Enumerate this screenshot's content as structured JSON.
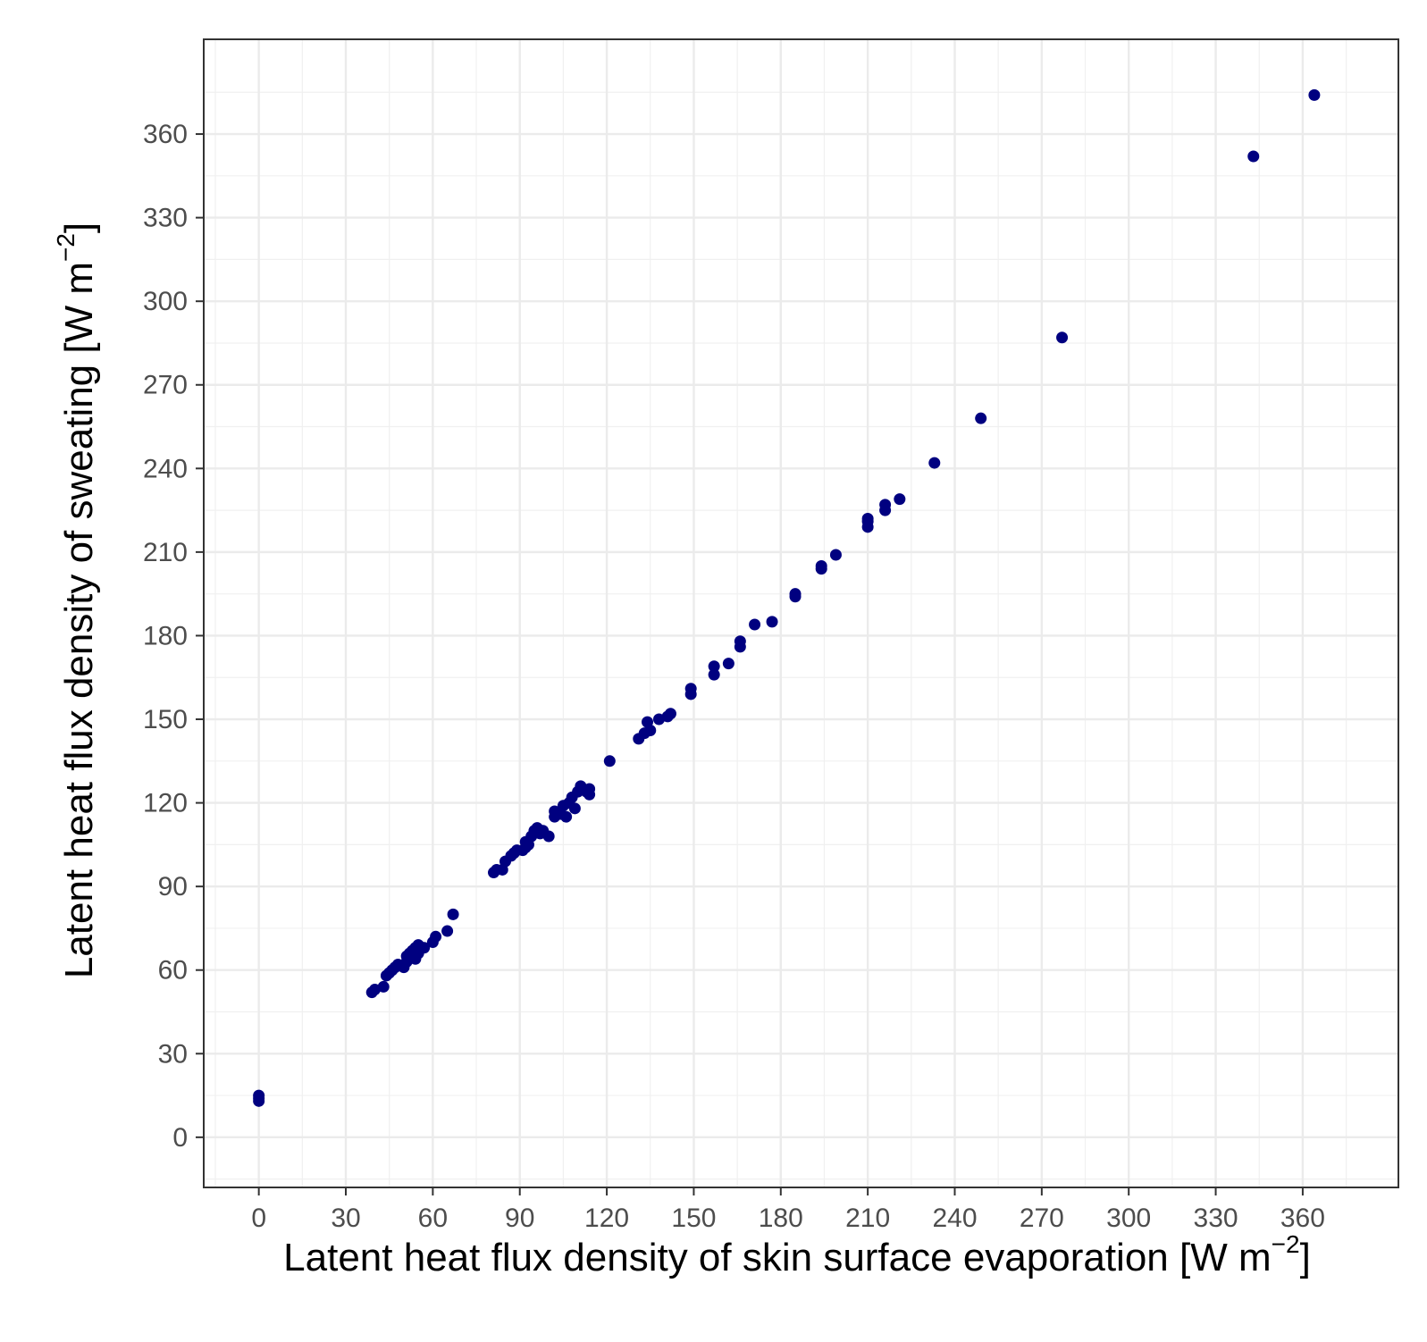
{
  "chart_data": {
    "type": "scatter",
    "xlabel": "Latent heat flux density of skin surface evaporation [W m",
    "xlabel_sup": "−2",
    "xlabel_end": "]",
    "ylabel": "Latent heat flux density of sweating [W m",
    "ylabel_sup": "−2",
    "ylabel_end": "]",
    "xlim": [
      -19,
      393
    ],
    "ylim": [
      -18,
      394
    ],
    "xticks": [
      0,
      30,
      60,
      90,
      120,
      150,
      180,
      210,
      240,
      270,
      300,
      330,
      360
    ],
    "yticks": [
      0,
      30,
      60,
      90,
      120,
      150,
      180,
      210,
      240,
      270,
      300,
      330,
      360
    ],
    "grid": true,
    "point_color": "#000080",
    "points": [
      [
        0,
        13
      ],
      [
        0,
        14
      ],
      [
        0,
        15
      ],
      [
        39,
        52
      ],
      [
        40,
        53
      ],
      [
        43,
        54
      ],
      [
        44,
        58
      ],
      [
        45,
        59
      ],
      [
        46,
        60
      ],
      [
        47,
        61
      ],
      [
        48,
        62
      ],
      [
        50,
        61
      ],
      [
        51,
        63
      ],
      [
        51,
        65
      ],
      [
        52,
        66
      ],
      [
        53,
        67
      ],
      [
        54,
        64
      ],
      [
        54,
        68
      ],
      [
        55,
        69
      ],
      [
        55,
        66
      ],
      [
        56,
        68
      ],
      [
        57,
        68
      ],
      [
        60,
        70
      ],
      [
        61,
        72
      ],
      [
        65,
        74
      ],
      [
        67,
        80
      ],
      [
        81,
        95
      ],
      [
        82,
        96
      ],
      [
        84,
        96
      ],
      [
        85,
        99
      ],
      [
        87,
        101
      ],
      [
        88,
        102
      ],
      [
        89,
        103
      ],
      [
        91,
        103
      ],
      [
        92,
        104
      ],
      [
        92,
        106
      ],
      [
        93,
        105
      ],
      [
        94,
        108
      ],
      [
        95,
        110
      ],
      [
        96,
        111
      ],
      [
        97,
        109
      ],
      [
        98,
        110
      ],
      [
        100,
        108
      ],
      [
        102,
        115
      ],
      [
        102,
        117
      ],
      [
        104,
        116
      ],
      [
        105,
        119
      ],
      [
        106,
        115
      ],
      [
        107,
        120
      ],
      [
        108,
        122
      ],
      [
        109,
        118
      ],
      [
        110,
        124
      ],
      [
        111,
        126
      ],
      [
        113,
        124
      ],
      [
        114,
        123
      ],
      [
        114,
        125
      ],
      [
        121,
        135
      ],
      [
        131,
        143
      ],
      [
        133,
        145
      ],
      [
        134,
        149
      ],
      [
        135,
        146
      ],
      [
        138,
        150
      ],
      [
        141,
        151
      ],
      [
        142,
        152
      ],
      [
        149,
        159
      ],
      [
        149,
        161
      ],
      [
        157,
        166
      ],
      [
        157,
        169
      ],
      [
        162,
        170
      ],
      [
        166,
        176
      ],
      [
        166,
        178
      ],
      [
        171,
        184
      ],
      [
        177,
        185
      ],
      [
        185,
        194
      ],
      [
        185,
        195
      ],
      [
        194,
        204
      ],
      [
        194,
        205
      ],
      [
        199,
        209
      ],
      [
        210,
        219
      ],
      [
        210,
        221
      ],
      [
        210,
        222
      ],
      [
        216,
        225
      ],
      [
        216,
        227
      ],
      [
        221,
        229
      ],
      [
        233,
        242
      ],
      [
        249,
        258
      ],
      [
        277,
        287
      ],
      [
        343,
        352
      ],
      [
        364,
        374
      ]
    ]
  }
}
